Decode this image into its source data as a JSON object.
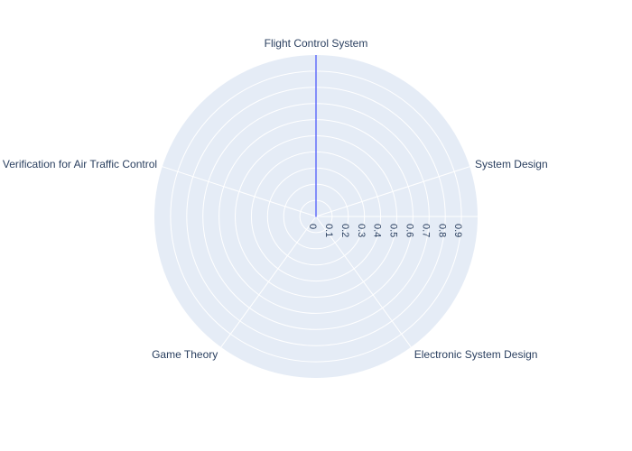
{
  "chart_data": {
    "type": "radar",
    "categories": [
      "Flight Control System",
      "System Design",
      "Electronic System Design",
      "Game Theory",
      "Formal Verification for Air Traffic Control"
    ],
    "series": [
      {
        "values": [
          1,
          0,
          0,
          0,
          0
        ],
        "color": "#636efa"
      }
    ],
    "radial_range": [
      0,
      1
    ],
    "radial_ticks": [
      "0",
      "0.1",
      "0.2",
      "0.3",
      "0.4",
      "0.5",
      "0.6",
      "0.7",
      "0.8",
      "0.9"
    ],
    "grid": true,
    "polar_background": "#e5ecf6",
    "grid_color": "#ffffff",
    "text_color": "#2a3f5f"
  }
}
